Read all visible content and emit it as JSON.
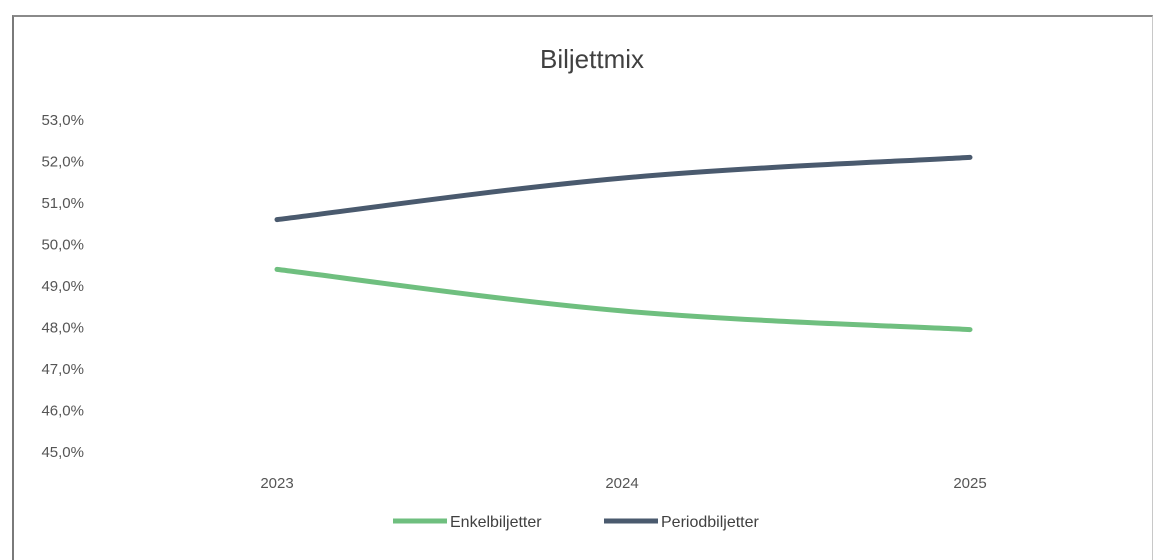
{
  "chart_data": {
    "type": "line",
    "title": "Biljettmix",
    "categories": [
      "2023",
      "2024",
      "2025"
    ],
    "series": [
      {
        "name": "Enkelbiljetter",
        "color": "#6fbf7f",
        "values": [
          49.4,
          48.4,
          47.95
        ]
      },
      {
        "name": "Periodbiljetter",
        "color": "#4a5a6e",
        "values": [
          50.6,
          51.6,
          52.1
        ]
      }
    ],
    "ylim": [
      45.0,
      53.0
    ],
    "yticks": [
      "45,0%",
      "46,0%",
      "47,0%",
      "48,0%",
      "49,0%",
      "50,0%",
      "51,0%",
      "52,0%",
      "53,0%"
    ],
    "ytick_values": [
      45,
      46,
      47,
      48,
      49,
      50,
      51,
      52,
      53
    ],
    "grid": false,
    "legend": "bottom"
  }
}
